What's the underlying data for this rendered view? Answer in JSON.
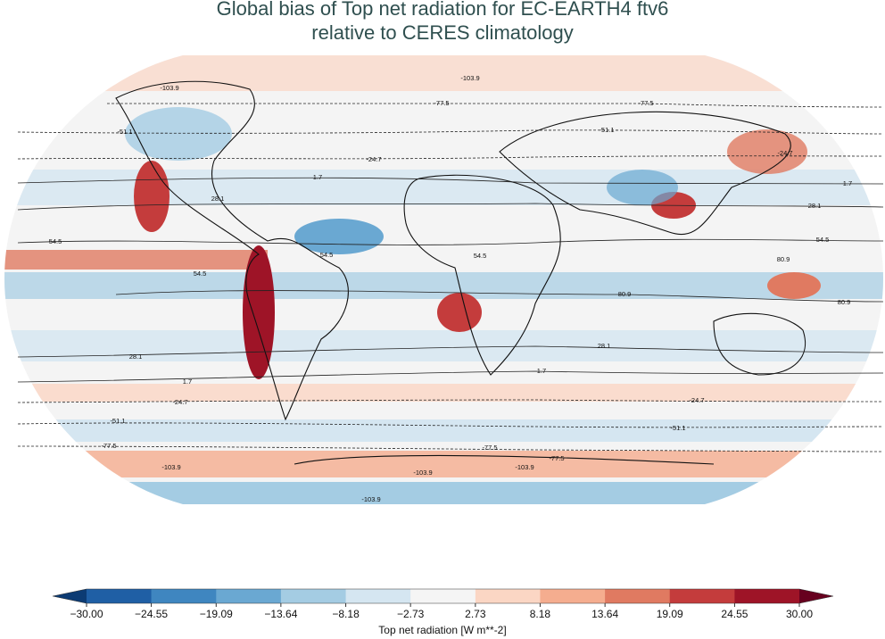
{
  "header": {
    "title": "Global bias of Top net radiation for EC-EARTH4 ftv6",
    "subtitle": "relative to CERES climatology"
  },
  "map": {
    "contour_labels": [
      "-103.9",
      "-103.9",
      "-77.5",
      "-77.5",
      "-51.1",
      "-51.1",
      "-24.7",
      "-24.7",
      "1.7",
      "1.7",
      "28.1",
      "28.1",
      "54.5",
      "54.5",
      "54.5",
      "54.5",
      "80.9",
      "80.9",
      "80.9",
      "54.5",
      "28.1",
      "28.1",
      "1.7",
      "1.7",
      "-24.7",
      "-24.7",
      "-51.1",
      "-51.1",
      "-77.5",
      "-77.5",
      "-77.5",
      "-103.9",
      "-103.9",
      "-103.9",
      "-103.9"
    ]
  },
  "colorbar": {
    "label": "Top net radiation [W m**-2]",
    "ticks": [
      {
        "value": -30,
        "label": "−30.00"
      },
      {
        "value": -24.55,
        "label": "−24.55"
      },
      {
        "value": -19.09,
        "label": "−19.09"
      },
      {
        "value": -13.64,
        "label": "−13.64"
      },
      {
        "value": -8.18,
        "label": "−8.18"
      },
      {
        "value": -2.73,
        "label": "−2.73"
      },
      2.73,
      8.18,
      13.64,
      19.09,
      24.55,
      {
        "value": 30,
        "label": "30.00"
      }
    ],
    "colors": [
      "#0c3b73",
      "#1f5fa5",
      "#3f86c0",
      "#6aa8d2",
      "#a4cce3",
      "#d5e6f1",
      "#f5f5f5",
      "#fbd6c4",
      "#f5ad8f",
      "#e07a61",
      "#c43c3c",
      "#9e1427",
      "#67001f"
    ]
  }
}
